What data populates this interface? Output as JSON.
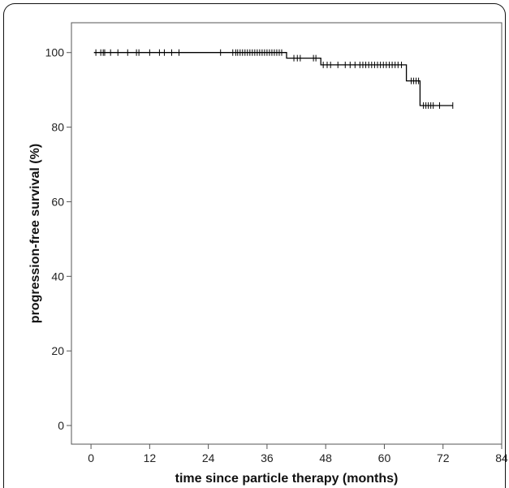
{
  "chart_data": {
    "type": "line",
    "title": "",
    "xlabel": "time since particle therapy (months)",
    "ylabel": "progression-free survival (%)",
    "xlim": [
      -4,
      84
    ],
    "ylim": [
      -5,
      108
    ],
    "x_ticks": [
      0,
      12,
      24,
      36,
      48,
      60,
      72,
      84
    ],
    "y_ticks": [
      0,
      20,
      40,
      60,
      80,
      100
    ],
    "grid": false,
    "series": [
      {
        "step_curve": [
          [
            0.6,
            100
          ],
          [
            40,
            100
          ],
          [
            40,
            98.5
          ],
          [
            44.5,
            98.5
          ],
          [
            44.5,
            98.5
          ],
          [
            47,
            98.5
          ],
          [
            47,
            96.7
          ],
          [
            64.5,
            96.7
          ],
          [
            64.5,
            92.4
          ],
          [
            67.3,
            92.4
          ],
          [
            67.3,
            85.8
          ],
          [
            74,
            85.8
          ]
        ],
        "censor_marks": [
          [
            1,
            100
          ],
          [
            2,
            100
          ],
          [
            2.5,
            100
          ],
          [
            2.8,
            100
          ],
          [
            4,
            100
          ],
          [
            5.5,
            100
          ],
          [
            7.5,
            100
          ],
          [
            9.3,
            100
          ],
          [
            9.8,
            100
          ],
          [
            12,
            100
          ],
          [
            14,
            100
          ],
          [
            15,
            100
          ],
          [
            16.5,
            100
          ],
          [
            18,
            100
          ],
          [
            26.5,
            100
          ],
          [
            29,
            100
          ],
          [
            29.6,
            100
          ],
          [
            30,
            100
          ],
          [
            30.5,
            100
          ],
          [
            31,
            100
          ],
          [
            31.5,
            100
          ],
          [
            32,
            100
          ],
          [
            32.5,
            100
          ],
          [
            33,
            100
          ],
          [
            33.5,
            100
          ],
          [
            34,
            100
          ],
          [
            34.5,
            100
          ],
          [
            35,
            100
          ],
          [
            35.5,
            100
          ],
          [
            36,
            100
          ],
          [
            36.5,
            100
          ],
          [
            37,
            100
          ],
          [
            37.5,
            100
          ],
          [
            38,
            100
          ],
          [
            38.5,
            100
          ],
          [
            39,
            100
          ],
          [
            41.5,
            98.5
          ],
          [
            42.2,
            98.5
          ],
          [
            42.8,
            98.5
          ],
          [
            45.5,
            98.5
          ],
          [
            46,
            98.5
          ],
          [
            47.5,
            96.7
          ],
          [
            48.3,
            96.7
          ],
          [
            49,
            96.7
          ],
          [
            50.5,
            96.7
          ],
          [
            52,
            96.7
          ],
          [
            53,
            96.7
          ],
          [
            54,
            96.7
          ],
          [
            55,
            96.7
          ],
          [
            55.6,
            96.7
          ],
          [
            56.2,
            96.7
          ],
          [
            56.8,
            96.7
          ],
          [
            57.4,
            96.7
          ],
          [
            58,
            96.7
          ],
          [
            58.6,
            96.7
          ],
          [
            59.2,
            96.7
          ],
          [
            59.8,
            96.7
          ],
          [
            60.4,
            96.7
          ],
          [
            61,
            96.7
          ],
          [
            61.6,
            96.7
          ],
          [
            62.2,
            96.7
          ],
          [
            62.8,
            96.7
          ],
          [
            63.5,
            96.7
          ],
          [
            65.5,
            92.4
          ],
          [
            66,
            92.4
          ],
          [
            66.5,
            92.4
          ],
          [
            67,
            92.4
          ],
          [
            68,
            85.8
          ],
          [
            68.5,
            85.8
          ],
          [
            69,
            85.8
          ],
          [
            69.5,
            85.8
          ],
          [
            70,
            85.8
          ],
          [
            71.3,
            85.8
          ],
          [
            74,
            85.8
          ]
        ]
      }
    ]
  }
}
